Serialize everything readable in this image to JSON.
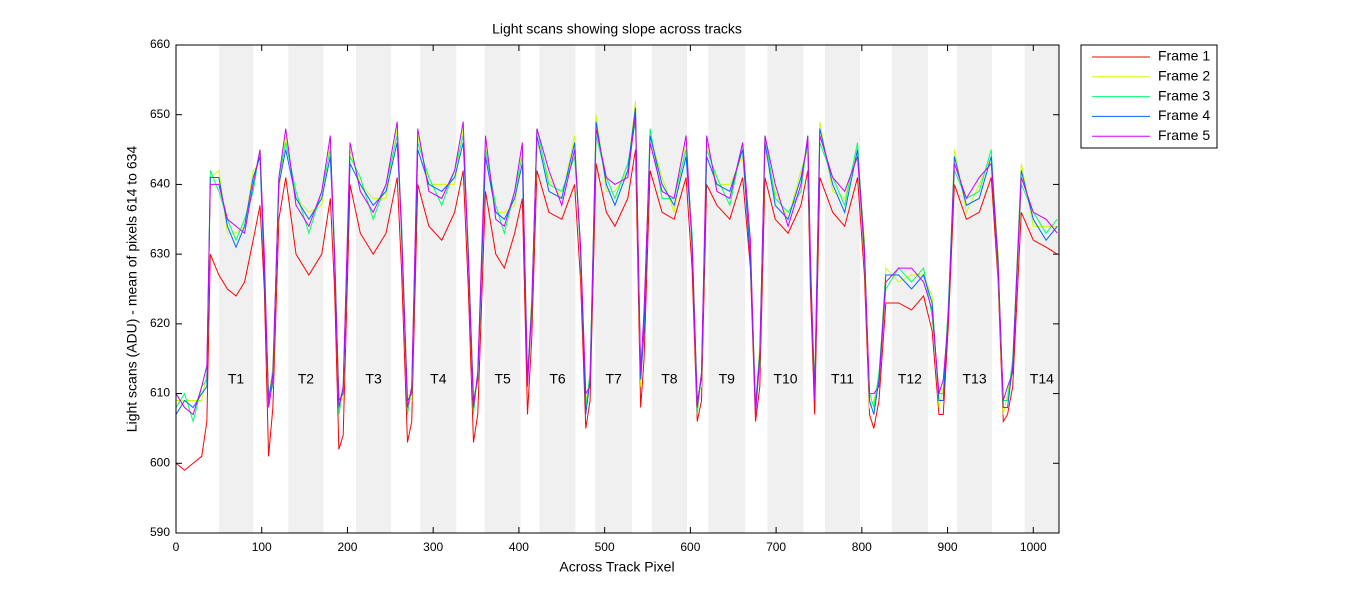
{
  "chart_data": {
    "type": "line",
    "title": "Light scans showing slope across tracks",
    "xlabel": "Across Track Pixel",
    "ylabel": "Light scans (ADU) - mean of pixels 614 to 634",
    "xlim": [
      0,
      1030
    ],
    "ylim": [
      590,
      660
    ],
    "xticks": [
      0,
      100,
      200,
      300,
      400,
      500,
      600,
      700,
      800,
      900,
      1000
    ],
    "yticks": [
      590,
      600,
      610,
      620,
      630,
      640,
      650,
      660
    ],
    "legend": "outside upper right",
    "band_color": "#f0f0f0",
    "band_label_y": 612,
    "bands": [
      {
        "label": "T1",
        "x": [
          50,
          90
        ]
      },
      {
        "label": "T2",
        "x": [
          131,
          172
        ]
      },
      {
        "label": "T3",
        "x": [
          210,
          251
        ]
      },
      {
        "label": "T4",
        "x": [
          285,
          327
        ]
      },
      {
        "label": "T5",
        "x": [
          360,
          402
        ]
      },
      {
        "label": "T6",
        "x": [
          424,
          466
        ]
      },
      {
        "label": "T7",
        "x": [
          489,
          532
        ]
      },
      {
        "label": "T8",
        "x": [
          555,
          596
        ]
      },
      {
        "label": "T9",
        "x": [
          621,
          664
        ]
      },
      {
        "label": "T10",
        "x": [
          690,
          732
        ]
      },
      {
        "label": "T11",
        "x": [
          757,
          798
        ]
      },
      {
        "label": "T12",
        "x": [
          835,
          877
        ]
      },
      {
        "label": "T13",
        "x": [
          911,
          952
        ]
      },
      {
        "label": "T14",
        "x": [
          990,
          1030
        ]
      }
    ],
    "x": [
      0,
      10,
      20,
      30,
      36,
      40,
      50,
      60,
      70,
      80,
      90,
      98,
      103,
      108,
      113,
      120,
      128,
      140,
      155,
      170,
      180,
      185,
      190,
      195,
      203,
      215,
      230,
      245,
      258,
      263,
      270,
      275,
      282,
      295,
      310,
      325,
      335,
      341,
      347,
      352,
      361,
      373,
      383,
      395,
      404,
      410,
      415,
      421,
      435,
      450,
      465,
      472,
      478,
      483,
      490,
      502,
      512,
      527,
      536,
      542,
      546,
      553,
      567,
      581,
      595,
      602,
      608,
      613,
      619,
      631,
      646,
      661,
      670,
      676,
      681,
      687,
      699,
      714,
      729,
      737,
      740,
      745,
      751,
      766,
      780,
      795,
      803,
      809,
      814,
      820,
      828,
      843,
      858,
      872,
      882,
      890,
      895,
      901,
      908,
      922,
      937,
      951,
      959,
      965,
      970,
      976,
      986,
      1000,
      1015,
      1028
    ],
    "series": [
      {
        "name": "Frame 1",
        "color": "#ff0000",
        "values": [
          600,
          599,
          600,
          601,
          606,
          630,
          627,
          625,
          624,
          626,
          632,
          637,
          625,
          601,
          608,
          635,
          641,
          630,
          627,
          630,
          638,
          625,
          602,
          604,
          640,
          633,
          630,
          633,
          641,
          628,
          603,
          606,
          640,
          634,
          632,
          636,
          642,
          625,
          603,
          607,
          639,
          630,
          628,
          633,
          638,
          607,
          618,
          642,
          636,
          635,
          640,
          626,
          605,
          609,
          643,
          636,
          634,
          638,
          645,
          608,
          615,
          642,
          636,
          635,
          641,
          628,
          606,
          609,
          640,
          637,
          635,
          641,
          628,
          606,
          611,
          641,
          635,
          633,
          637,
          642,
          625,
          607,
          641,
          636,
          634,
          641,
          627,
          607,
          605,
          609,
          623,
          623,
          622,
          624,
          619,
          607,
          607,
          620,
          640,
          635,
          636,
          641,
          626,
          606,
          607,
          611,
          636,
          632,
          631,
          630
        ]
      },
      {
        "name": "Frame 2",
        "color": "#ccff00",
        "values": [
          609,
          609,
          609,
          609,
          613,
          641,
          642,
          633,
          633,
          634,
          642,
          643,
          629,
          609,
          614,
          639,
          647,
          638,
          636,
          637,
          646,
          630,
          610,
          609,
          645,
          640,
          638,
          638,
          648,
          634,
          610,
          609,
          647,
          640,
          640,
          640,
          648,
          630,
          610,
          611,
          646,
          636,
          636,
          637,
          645,
          612,
          624,
          646,
          641,
          638,
          647,
          629,
          609,
          612,
          650,
          639,
          639,
          642,
          652,
          611,
          621,
          647,
          641,
          636,
          646,
          632,
          610,
          611,
          646,
          640,
          640,
          644,
          631,
          608,
          617,
          645,
          639,
          635,
          642,
          645,
          629,
          610,
          649,
          639,
          638,
          645,
          632,
          608,
          609,
          612,
          628,
          626,
          627,
          627,
          624,
          608,
          611,
          622,
          645,
          636,
          640,
          644,
          630,
          607,
          610,
          614,
          643,
          634,
          634,
          634
        ]
      },
      {
        "name": "Frame 3",
        "color": "#00ff66",
        "values": [
          608,
          610,
          606,
          611,
          612,
          642,
          639,
          635,
          632,
          635,
          639,
          645,
          628,
          610,
          611,
          641,
          646,
          639,
          633,
          639,
          645,
          631,
          607,
          611,
          644,
          641,
          635,
          640,
          647,
          635,
          607,
          611,
          646,
          641,
          637,
          642,
          647,
          631,
          607,
          613,
          645,
          637,
          633,
          639,
          644,
          613,
          621,
          648,
          640,
          639,
          644,
          631,
          608,
          613,
          647,
          641,
          638,
          643,
          649,
          613,
          620,
          648,
          638,
          638,
          645,
          633,
          607,
          613,
          645,
          641,
          637,
          646,
          630,
          609,
          614,
          647,
          638,
          636,
          639,
          647,
          628,
          611,
          646,
          641,
          637,
          646,
          629,
          610,
          608,
          613,
          625,
          628,
          626,
          628,
          621,
          610,
          610,
          623,
          642,
          638,
          639,
          645,
          627,
          609,
          609,
          615,
          640,
          636,
          633,
          635
        ]
      },
      {
        "name": "Frame 4",
        "color": "#0066ff",
        "values": [
          607,
          609,
          608,
          610,
          611,
          641,
          641,
          634,
          631,
          634,
          641,
          644,
          627,
          609,
          613,
          640,
          645,
          638,
          635,
          638,
          644,
          630,
          609,
          610,
          643,
          640,
          637,
          639,
          646,
          634,
          609,
          610,
          645,
          640,
          639,
          641,
          646,
          630,
          609,
          612,
          644,
          636,
          635,
          638,
          643,
          612,
          623,
          647,
          639,
          638,
          646,
          630,
          607,
          612,
          649,
          640,
          637,
          642,
          651,
          612,
          619,
          647,
          640,
          637,
          644,
          632,
          609,
          612,
          644,
          640,
          639,
          645,
          629,
          608,
          616,
          646,
          637,
          635,
          641,
          646,
          627,
          610,
          648,
          640,
          636,
          645,
          631,
          609,
          607,
          612,
          627,
          627,
          625,
          627,
          623,
          609,
          609,
          622,
          644,
          637,
          638,
          644,
          629,
          608,
          608,
          614,
          642,
          635,
          632,
          634
        ]
      },
      {
        "name": "Frame 5",
        "color": "#cc00ff",
        "values": [
          610,
          608,
          607,
          611,
          614,
          640,
          640,
          635,
          634,
          633,
          640,
          645,
          630,
          608,
          612,
          641,
          648,
          637,
          634,
          639,
          647,
          629,
          608,
          611,
          646,
          639,
          636,
          640,
          649,
          633,
          608,
          611,
          648,
          639,
          638,
          642,
          649,
          629,
          608,
          613,
          647,
          635,
          634,
          639,
          646,
          611,
          622,
          648,
          642,
          637,
          645,
          631,
          610,
          611,
          648,
          641,
          640,
          641,
          650,
          613,
          622,
          646,
          639,
          638,
          647,
          631,
          608,
          613,
          647,
          639,
          638,
          646,
          632,
          607,
          615,
          647,
          640,
          634,
          640,
          647,
          630,
          609,
          647,
          641,
          639,
          644,
          630,
          610,
          610,
          611,
          626,
          628,
          628,
          626,
          622,
          610,
          612,
          621,
          643,
          638,
          641,
          643,
          628,
          609,
          611,
          613,
          641,
          636,
          635,
          633
        ]
      }
    ]
  }
}
